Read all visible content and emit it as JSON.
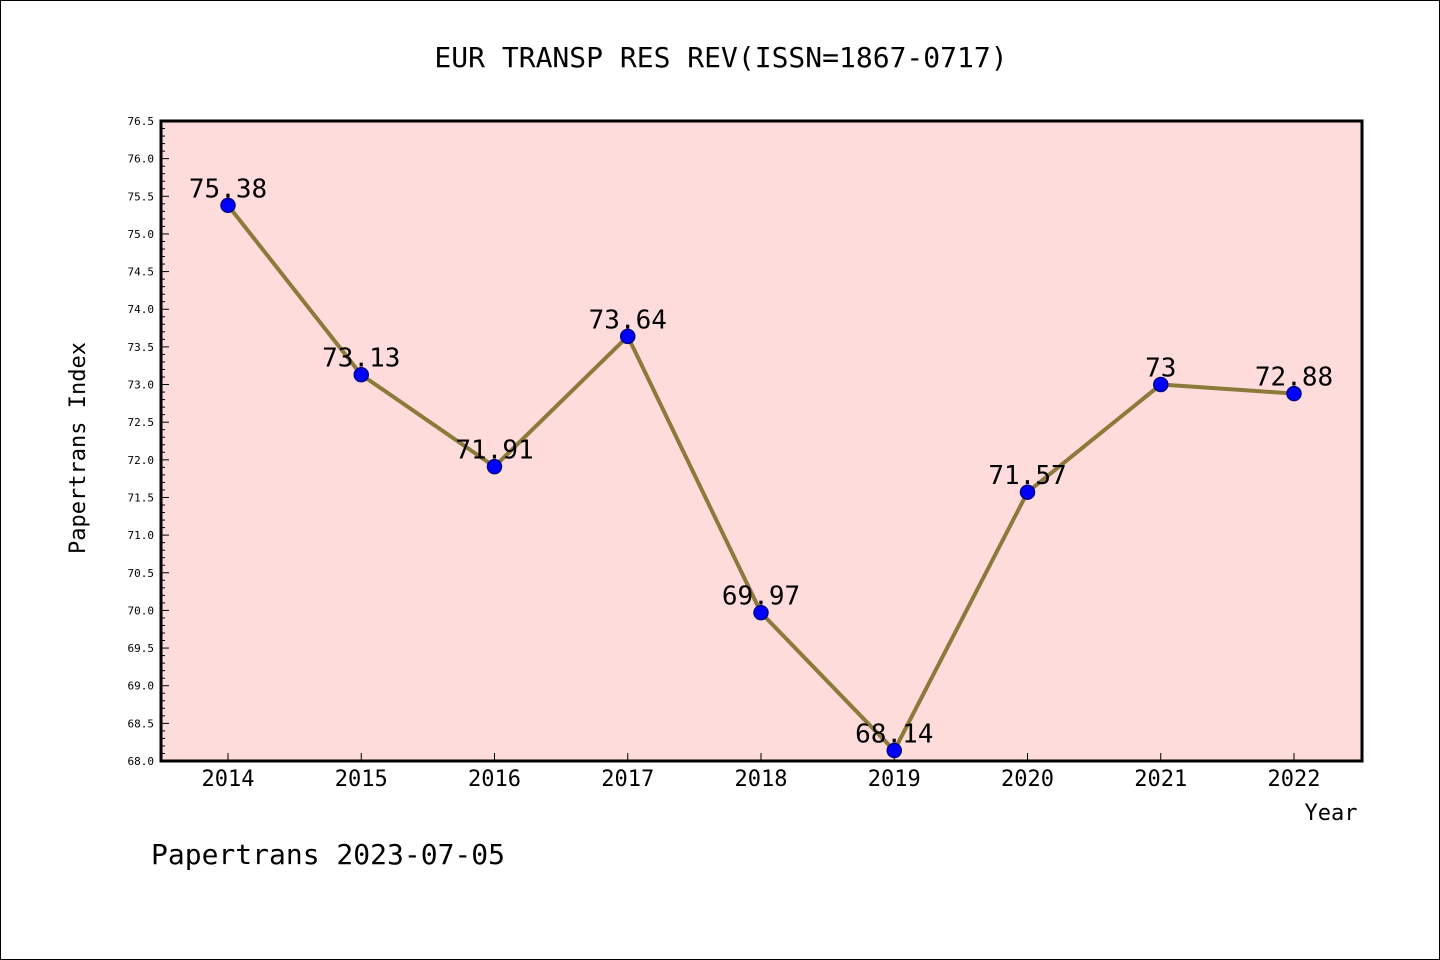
{
  "chart_data": {
    "type": "line",
    "title": "EUR TRANSP RES REV(ISSN=1867-0717)",
    "xlabel": "Year",
    "ylabel": "Papertrans Index",
    "categories": [
      "2014",
      "2015",
      "2016",
      "2017",
      "2018",
      "2019",
      "2020",
      "2021",
      "2022"
    ],
    "series": [
      {
        "values": [
          75.38,
          73.13,
          71.91,
          73.64,
          69.97,
          68.14,
          71.57,
          73,
          72.88
        ],
        "labels": [
          "75.38",
          "73.13",
          "71.91",
          "73.64",
          "69.97",
          "68.14",
          "71.57",
          "73",
          "72.88"
        ]
      }
    ],
    "ylim": [
      68.0,
      76.5
    ],
    "yticks": [
      "68.0",
      "68.5",
      "69.0",
      "69.5",
      "70.0",
      "70.5",
      "71.0",
      "71.5",
      "72.0",
      "72.5",
      "73.0",
      "73.5",
      "74.0",
      "74.5",
      "75.0",
      "75.5",
      "76.0",
      "76.5"
    ],
    "grid": false,
    "colors": {
      "plot_background": "#ffdcdc",
      "line": "#8b7a3a",
      "marker_fill": "#0000ff",
      "marker_edge": "#00008b"
    }
  },
  "footer": "Papertrans 2023-07-05"
}
